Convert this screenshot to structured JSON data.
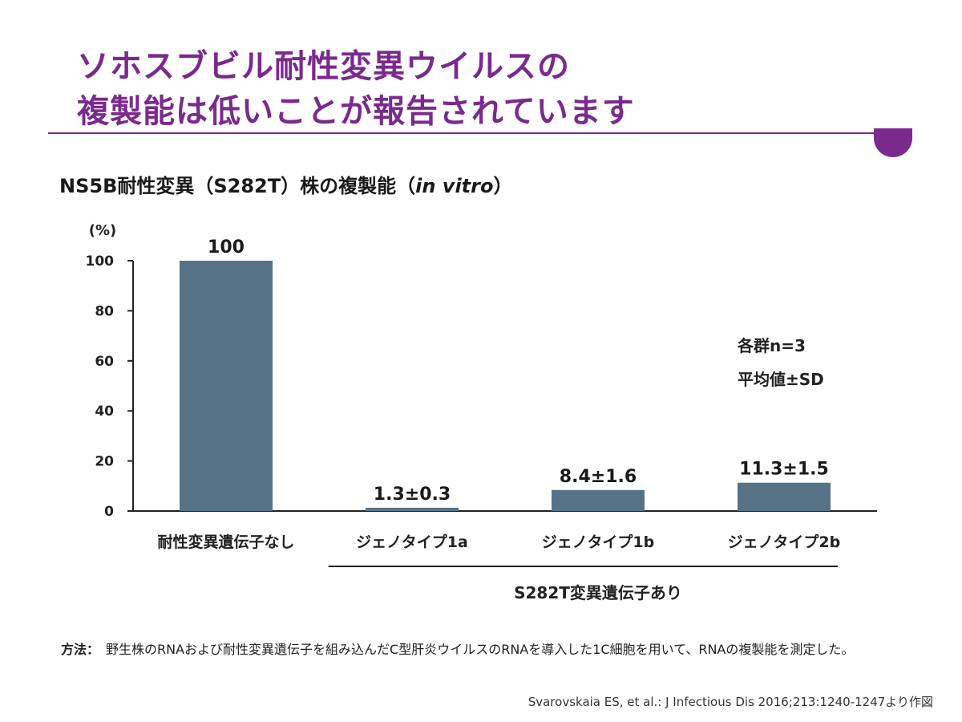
{
  "slide": {
    "title_line1": "ソホスブビル耐性変異ウイルスの",
    "title_line2": "複製能は低いことが報告されています",
    "subtitle_prefix": "NS5B耐性変異（S282T）株の複製能（",
    "subtitle_italic": "in vitro",
    "subtitle_suffix": "）",
    "method_label": "方法：",
    "method_text": "野生株のRNAおよび耐性変異遺伝子を組み込んだC型肝炎ウイルスのRNAを導入した1C細胞を用いて、RNAの複製能を測定した。",
    "source": "Svarovskaia ES, et al.: J Infectious Dis 2016;213:1240-1247より作図",
    "accent_color": "#7a2a8c"
  },
  "chart_data": {
    "type": "bar",
    "categories": [
      "耐性変異遺伝子なし",
      "ジェノタイプ1a",
      "ジェノタイプ1b",
      "ジェノタイプ2b"
    ],
    "values": [
      100,
      1.3,
      8.4,
      11.3
    ],
    "errors": [
      null,
      0.3,
      1.6,
      1.5
    ],
    "value_labels": [
      "100",
      "1.3±0.3",
      "8.4±1.6",
      "11.3±1.5"
    ],
    "ylabel": "(%)",
    "ylim": [
      0,
      100
    ],
    "yticks": [
      0,
      20,
      40,
      60,
      80,
      100
    ],
    "bar_color": "#557287",
    "group_label": "S282T変異遺伝子あり",
    "group_span": [
      1,
      3
    ],
    "annotations": [
      "各群n=3",
      "平均値±SD"
    ]
  }
}
